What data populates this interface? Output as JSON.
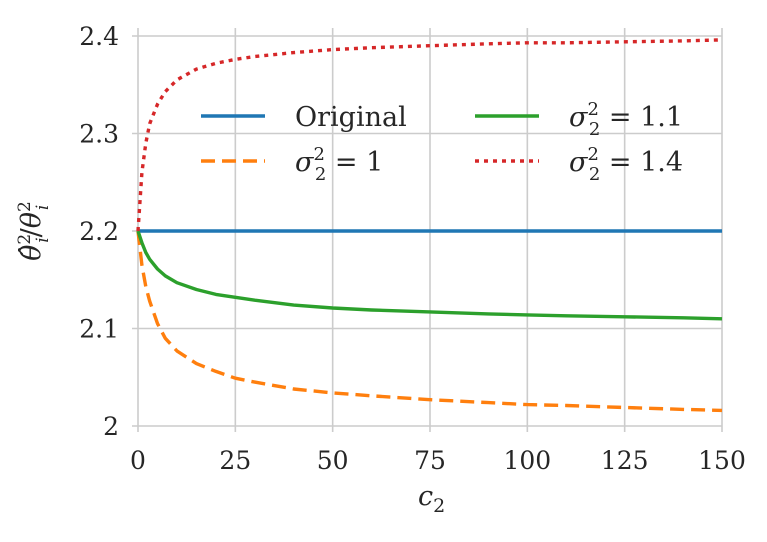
{
  "chart_data": {
    "type": "line",
    "xlabel": "c_2",
    "ylabel": "θ̂_i^2 / θ_i^2",
    "xlim": [
      0,
      150
    ],
    "ylim": [
      2.0,
      2.4
    ],
    "grid": true,
    "legend_placement": "top, two columns",
    "x_ticks": [
      {
        "value": 0,
        "label": "0"
      },
      {
        "value": 25,
        "label": "25"
      },
      {
        "value": 50,
        "label": "50"
      },
      {
        "value": 75,
        "label": "75"
      },
      {
        "value": 100,
        "label": "100"
      },
      {
        "value": 125,
        "label": "125"
      },
      {
        "value": 150,
        "label": "150"
      }
    ],
    "y_ticks": [
      {
        "value": 2.0,
        "label": "2"
      },
      {
        "value": 2.1,
        "label": "2.1"
      },
      {
        "value": 2.2,
        "label": "2.2"
      },
      {
        "value": 2.3,
        "label": "2.3"
      },
      {
        "value": 2.4,
        "label": "2.4"
      }
    ],
    "x": [
      0,
      1,
      2,
      3,
      5,
      7,
      10,
      15,
      20,
      25,
      30,
      40,
      50,
      60,
      75,
      90,
      100,
      110,
      125,
      140,
      150
    ],
    "series": [
      {
        "name": "Original",
        "color": "#1f77b4",
        "dash": "solid",
        "values": [
          2.2,
          2.2,
          2.2,
          2.2,
          2.2,
          2.2,
          2.2,
          2.2,
          2.2,
          2.2,
          2.2,
          2.2,
          2.2,
          2.2,
          2.2,
          2.2,
          2.2,
          2.2,
          2.2,
          2.2,
          2.2
        ]
      },
      {
        "name": "σ_2^2 = 1",
        "color": "#ff7f0e",
        "dash": "dashed",
        "values": [
          2.2,
          2.165,
          2.143,
          2.128,
          2.105,
          2.09,
          2.077,
          2.064,
          2.056,
          2.049,
          2.045,
          2.038,
          2.034,
          2.031,
          2.027,
          2.024,
          2.022,
          2.021,
          2.019,
          2.017,
          2.016
        ]
      },
      {
        "name": "σ_2^2 = 1.1",
        "color": "#2ca02c",
        "dash": "solid",
        "values": [
          2.2,
          2.188,
          2.178,
          2.171,
          2.161,
          2.154,
          2.147,
          2.14,
          2.135,
          2.132,
          2.129,
          2.124,
          2.121,
          2.119,
          2.117,
          2.115,
          2.114,
          2.113,
          2.112,
          2.111,
          2.11
        ]
      },
      {
        "name": "σ_2^2 = 1.4",
        "color": "#d62728",
        "dash": "dotted",
        "values": [
          2.2,
          2.26,
          2.29,
          2.31,
          2.33,
          2.343,
          2.355,
          2.366,
          2.372,
          2.376,
          2.379,
          2.383,
          2.386,
          2.388,
          2.39,
          2.392,
          2.393,
          2.393,
          2.394,
          2.395,
          2.396
        ]
      }
    ]
  }
}
